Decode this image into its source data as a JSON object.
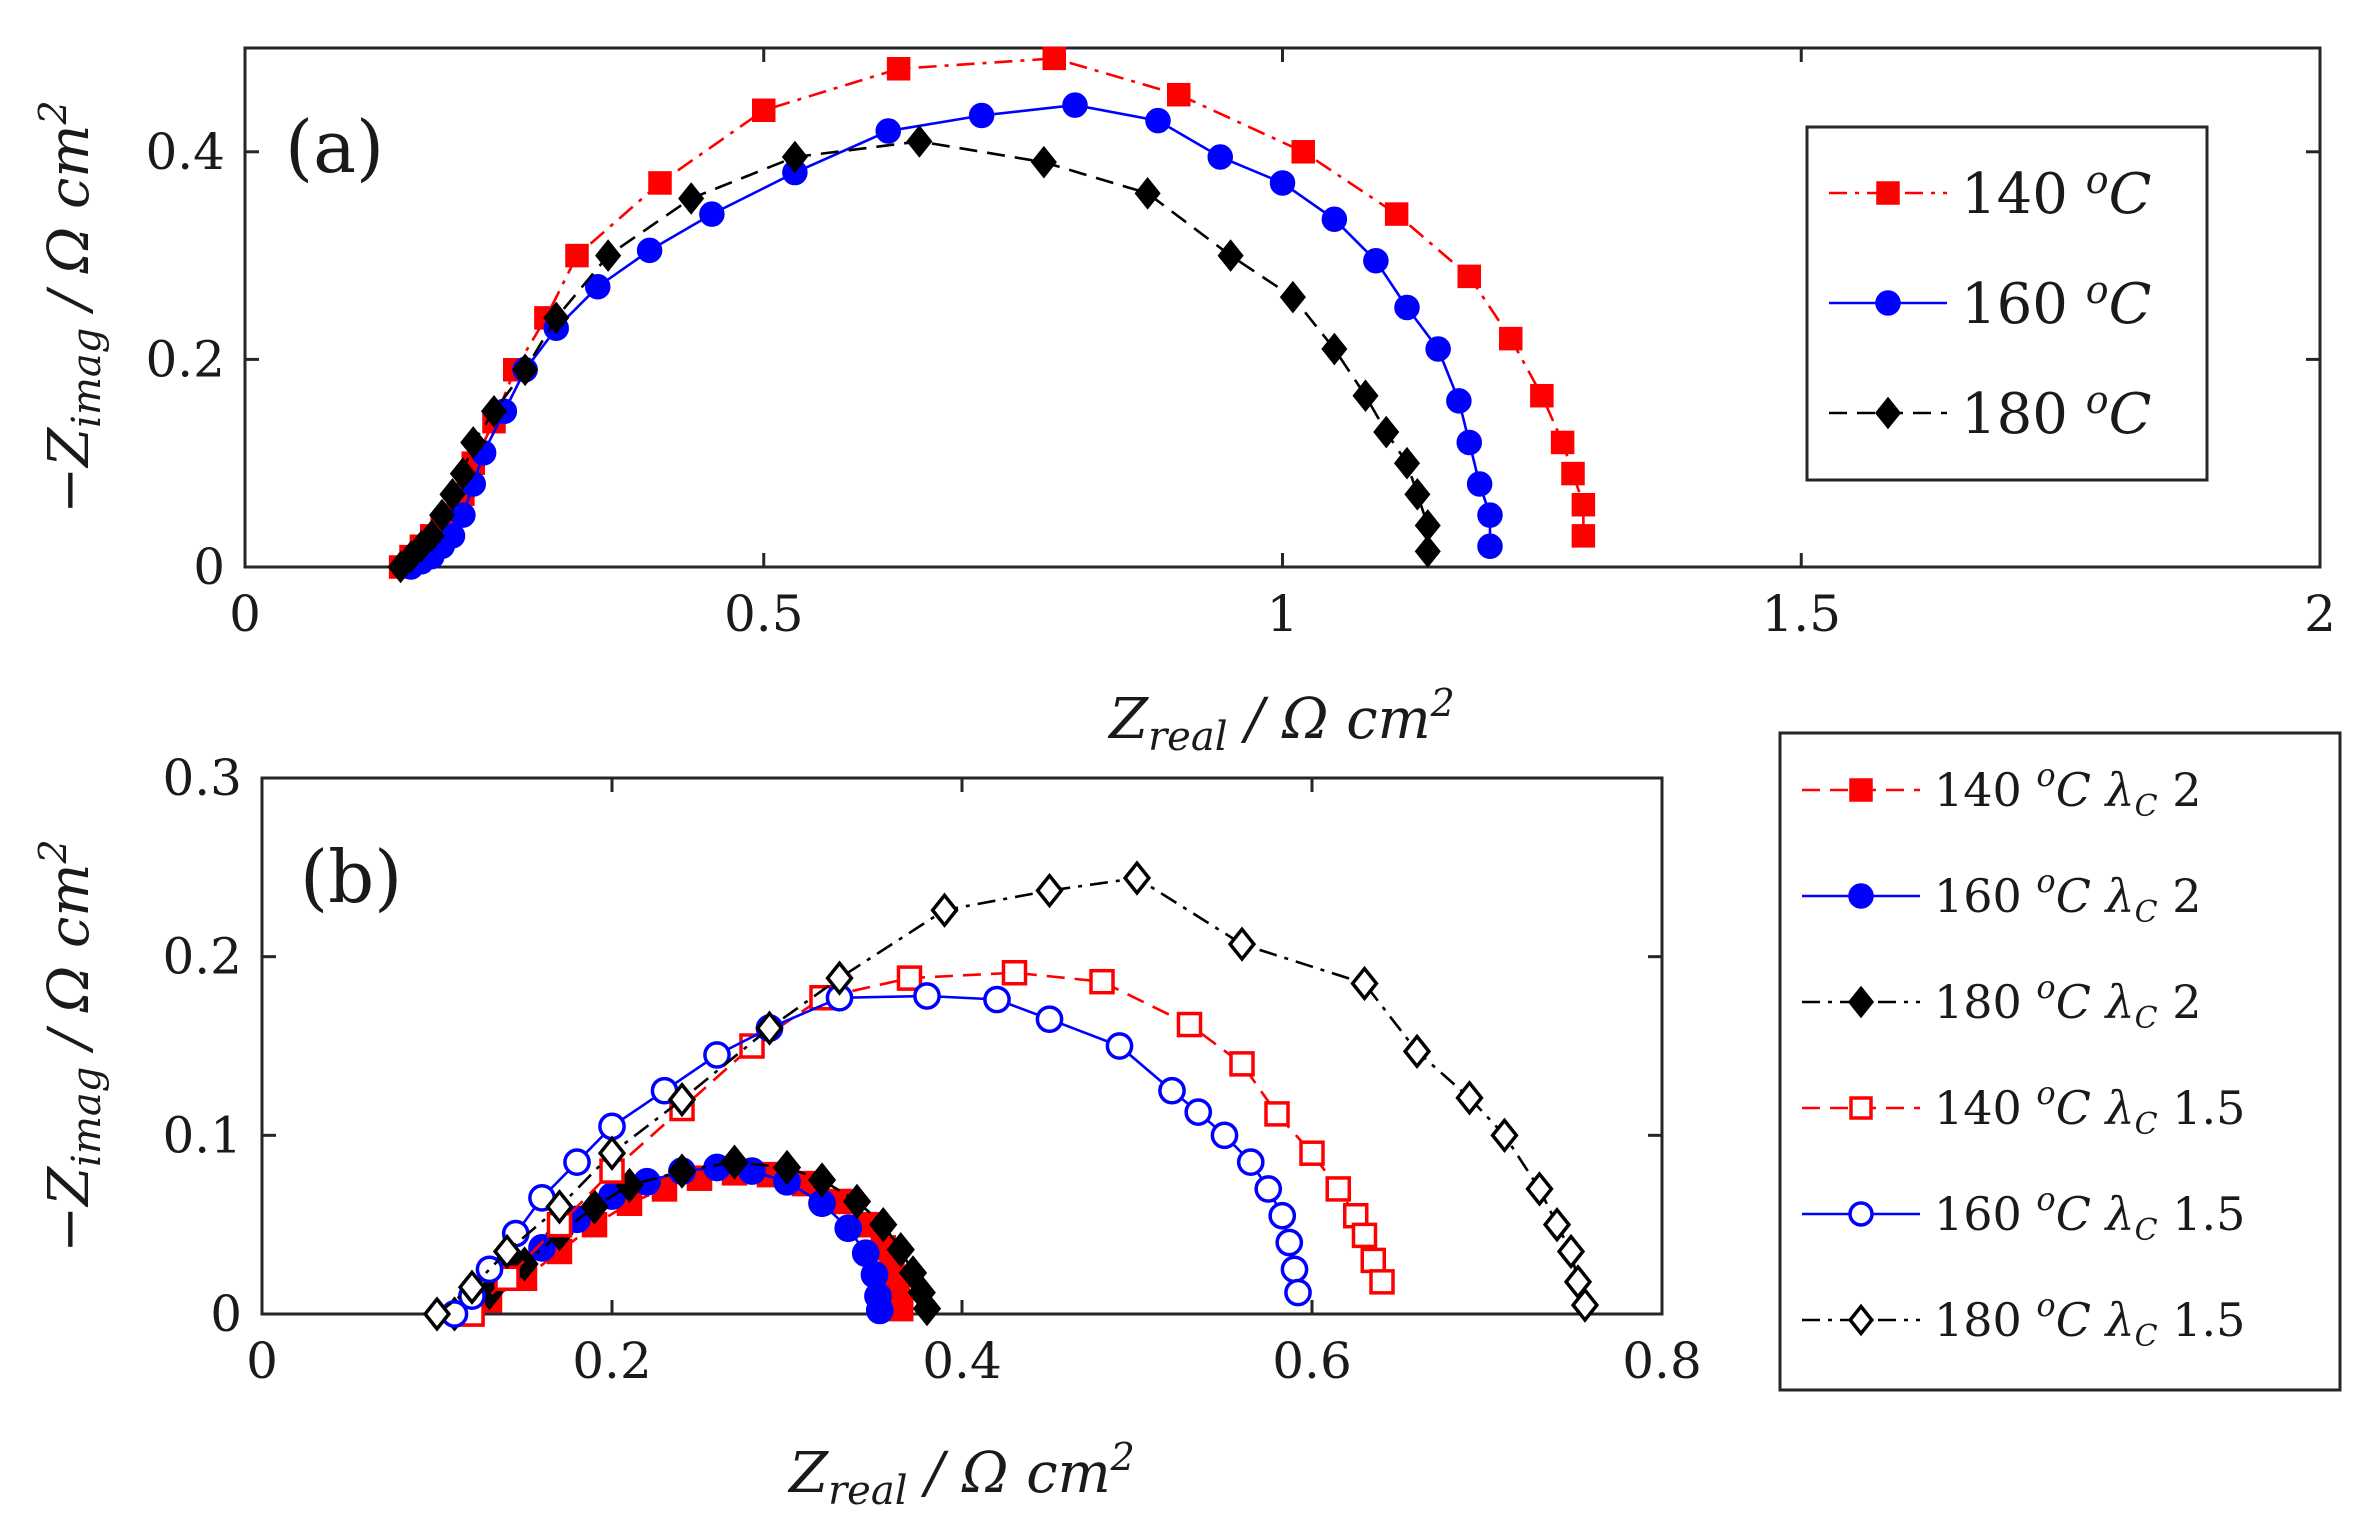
{
  "chart_data": [
    {
      "type": "scatter",
      "panel_label": "(a)",
      "xlabel": "Z",
      "xlabel_sub": "real",
      "xlabel_unit": " / Ω cm",
      "xlabel_sup": "2",
      "ylabel": "−Z",
      "ylabel_sub": "imag",
      "ylabel_unit": " / Ω cm",
      "ylabel_sup": "2",
      "xlim": [
        0,
        2
      ],
      "ylim": [
        0,
        0.5
      ],
      "xticks": [
        0,
        0.5,
        1,
        1.5,
        2
      ],
      "yticks": [
        0,
        0.2,
        0.4
      ],
      "xtick_labels": [
        "0",
        "0.5",
        "1",
        "1.5",
        "2"
      ],
      "ytick_labels": [
        "0",
        "0.2",
        "0.4"
      ],
      "legend_position": "top-right",
      "series": [
        {
          "name": "140",
          "name_sup": "o",
          "name_unit": "C",
          "color": "#ff0000",
          "marker": "square",
          "filled": true,
          "dash": "dashdot",
          "x": [
            0.15,
            0.16,
            0.17,
            0.18,
            0.19,
            0.2,
            0.21,
            0.22,
            0.24,
            0.26,
            0.29,
            0.32,
            0.4,
            0.5,
            0.63,
            0.78,
            0.9,
            1.02,
            1.11,
            1.18,
            1.22,
            1.25,
            1.27,
            1.28,
            1.29,
            1.29
          ],
          "y": [
            0.0,
            0.01,
            0.02,
            0.03,
            0.04,
            0.05,
            0.07,
            0.1,
            0.14,
            0.19,
            0.24,
            0.3,
            0.37,
            0.44,
            0.48,
            0.49,
            0.455,
            0.4,
            0.34,
            0.28,
            0.22,
            0.165,
            0.12,
            0.09,
            0.06,
            0.03
          ]
        },
        {
          "name": "160",
          "name_sup": "o",
          "name_unit": "C",
          "color": "#0000ff",
          "marker": "circle",
          "filled": true,
          "dash": "solid",
          "x": [
            0.16,
            0.17,
            0.18,
            0.19,
            0.2,
            0.21,
            0.22,
            0.23,
            0.25,
            0.27,
            0.3,
            0.34,
            0.39,
            0.45,
            0.53,
            0.62,
            0.71,
            0.8,
            0.88,
            0.94,
            1.0,
            1.05,
            1.09,
            1.12,
            1.15,
            1.17,
            1.18,
            1.19,
            1.2,
            1.2
          ],
          "y": [
            0.0,
            0.005,
            0.01,
            0.02,
            0.03,
            0.05,
            0.08,
            0.11,
            0.15,
            0.19,
            0.23,
            0.27,
            0.305,
            0.34,
            0.38,
            0.42,
            0.435,
            0.445,
            0.43,
            0.395,
            0.37,
            0.335,
            0.295,
            0.25,
            0.21,
            0.16,
            0.12,
            0.08,
            0.05,
            0.02
          ]
        },
        {
          "name": "180",
          "name_sup": "o",
          "name_unit": "C",
          "color": "#000000",
          "marker": "diamond",
          "filled": true,
          "dash": "dashed",
          "x": [
            0.15,
            0.16,
            0.17,
            0.18,
            0.19,
            0.2,
            0.21,
            0.22,
            0.24,
            0.27,
            0.3,
            0.35,
            0.43,
            0.53,
            0.65,
            0.77,
            0.87,
            0.95,
            1.01,
            1.05,
            1.08,
            1.1,
            1.12,
            1.13,
            1.14,
            1.14
          ],
          "y": [
            0.0,
            0.01,
            0.02,
            0.03,
            0.05,
            0.07,
            0.09,
            0.12,
            0.15,
            0.19,
            0.24,
            0.3,
            0.355,
            0.395,
            0.41,
            0.39,
            0.36,
            0.3,
            0.26,
            0.21,
            0.165,
            0.13,
            0.1,
            0.07,
            0.04,
            0.015
          ]
        }
      ]
    },
    {
      "type": "scatter",
      "panel_label": "(b)",
      "xlabel": "Z",
      "xlabel_sub": "real",
      "xlabel_unit": " / Ω cm",
      "xlabel_sup": "2",
      "ylabel": "−Z",
      "ylabel_sub": "imag",
      "ylabel_unit": " / Ω cm",
      "ylabel_sup": "2",
      "xlim": [
        0,
        0.8
      ],
      "ylim": [
        0,
        0.3
      ],
      "xticks": [
        0,
        0.2,
        0.4,
        0.6,
        0.8
      ],
      "yticks": [
        0,
        0.1,
        0.2,
        0.3
      ],
      "xtick_labels": [
        "0",
        "0.2",
        "0.4",
        "0.6",
        "0.8"
      ],
      "ytick_labels": [
        "0",
        "0.1",
        "0.2",
        "0.3"
      ],
      "legend_position": "outside-right",
      "series": [
        {
          "name": "140",
          "name_sup": "o",
          "name_unit": "C",
          "lambda_sub": "C",
          "lambda_value": "2",
          "color": "#ff0000",
          "marker": "square",
          "filled": true,
          "dash": "dashed",
          "x": [
            0.12,
            0.13,
            0.15,
            0.17,
            0.19,
            0.21,
            0.23,
            0.25,
            0.27,
            0.29,
            0.31,
            0.33,
            0.345,
            0.355,
            0.36,
            0.363,
            0.365
          ],
          "y": [
            0.0,
            0.008,
            0.02,
            0.035,
            0.05,
            0.062,
            0.07,
            0.076,
            0.079,
            0.078,
            0.073,
            0.063,
            0.05,
            0.037,
            0.024,
            0.012,
            0.003
          ]
        },
        {
          "name": "160",
          "name_sup": "o",
          "name_unit": "C",
          "lambda_sub": "C",
          "lambda_value": "2",
          "color": "#0000ff",
          "marker": "circle",
          "filled": true,
          "dash": "solid",
          "x": [
            0.11,
            0.12,
            0.14,
            0.16,
            0.18,
            0.2,
            0.22,
            0.24,
            0.26,
            0.28,
            0.3,
            0.32,
            0.335,
            0.345,
            0.35,
            0.352,
            0.353
          ],
          "y": [
            0.0,
            0.01,
            0.022,
            0.037,
            0.053,
            0.066,
            0.074,
            0.08,
            0.082,
            0.08,
            0.074,
            0.062,
            0.048,
            0.034,
            0.022,
            0.01,
            0.002
          ]
        },
        {
          "name": "180",
          "name_sup": "o",
          "name_unit": "C",
          "lambda_sub": "C",
          "lambda_value": "2",
          "color": "#000000",
          "marker": "diamond",
          "filled": true,
          "dash": "dashdot",
          "x": [
            0.11,
            0.13,
            0.15,
            0.17,
            0.19,
            0.21,
            0.24,
            0.27,
            0.3,
            0.32,
            0.34,
            0.355,
            0.365,
            0.372,
            0.377,
            0.38
          ],
          "y": [
            0.0,
            0.012,
            0.028,
            0.045,
            0.06,
            0.072,
            0.08,
            0.085,
            0.082,
            0.075,
            0.063,
            0.05,
            0.036,
            0.023,
            0.012,
            0.003
          ]
        },
        {
          "name": "140",
          "name_sup": "o",
          "name_unit": "C",
          "lambda_sub": "C",
          "lambda_value": "1.5",
          "color": "#ff0000",
          "marker": "square",
          "filled": false,
          "dash": "dashed",
          "x": [
            0.12,
            0.14,
            0.17,
            0.2,
            0.24,
            0.28,
            0.32,
            0.37,
            0.43,
            0.48,
            0.53,
            0.56,
            0.58,
            0.6,
            0.615,
            0.625,
            0.63,
            0.635,
            0.64
          ],
          "y": [
            0.0,
            0.02,
            0.05,
            0.08,
            0.115,
            0.15,
            0.177,
            0.188,
            0.191,
            0.186,
            0.162,
            0.14,
            0.112,
            0.09,
            0.07,
            0.055,
            0.044,
            0.03,
            0.018
          ]
        },
        {
          "name": "160",
          "name_sup": "o",
          "name_unit": "C",
          "lambda_sub": "C",
          "lambda_value": "1.5",
          "color": "#0000ff",
          "marker": "circle",
          "filled": false,
          "dash": "solid",
          "x": [
            0.11,
            0.12,
            0.13,
            0.145,
            0.16,
            0.18,
            0.2,
            0.23,
            0.26,
            0.29,
            0.33,
            0.38,
            0.42,
            0.45,
            0.49,
            0.52,
            0.535,
            0.55,
            0.565,
            0.575,
            0.583,
            0.587,
            0.59,
            0.592
          ],
          "y": [
            0.0,
            0.01,
            0.025,
            0.045,
            0.065,
            0.085,
            0.105,
            0.125,
            0.145,
            0.16,
            0.177,
            0.178,
            0.176,
            0.165,
            0.15,
            0.125,
            0.113,
            0.1,
            0.085,
            0.07,
            0.055,
            0.04,
            0.025,
            0.012
          ]
        },
        {
          "name": "180",
          "name_sup": "o",
          "name_unit": "C",
          "lambda_sub": "C",
          "lambda_value": "1.5",
          "color": "#000000",
          "marker": "diamond",
          "filled": false,
          "dash": "dashdot",
          "x": [
            0.1,
            0.12,
            0.14,
            0.17,
            0.2,
            0.24,
            0.29,
            0.33,
            0.39,
            0.45,
            0.5,
            0.56,
            0.63,
            0.66,
            0.69,
            0.71,
            0.73,
            0.74,
            0.748,
            0.752,
            0.756
          ],
          "y": [
            0.0,
            0.015,
            0.035,
            0.06,
            0.09,
            0.12,
            0.16,
            0.188,
            0.226,
            0.237,
            0.244,
            0.207,
            0.185,
            0.147,
            0.121,
            0.1,
            0.07,
            0.05,
            0.035,
            0.018,
            0.005
          ]
        }
      ]
    }
  ]
}
